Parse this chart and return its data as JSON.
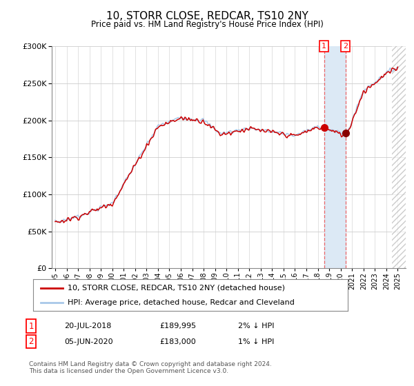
{
  "title": "10, STORR CLOSE, REDCAR, TS10 2NY",
  "subtitle": "Price paid vs. HM Land Registry's House Price Index (HPI)",
  "ylim": [
    0,
    300000
  ],
  "yticks": [
    0,
    50000,
    100000,
    150000,
    200000,
    250000,
    300000
  ],
  "hpi_color": "#a8c8e8",
  "price_color": "#cc0000",
  "marker1_x": 2018.542,
  "marker2_x": 2020.417,
  "marker1_price": 189995,
  "marker2_price": 183000,
  "legend_line1": "10, STORR CLOSE, REDCAR, TS10 2NY (detached house)",
  "legend_line2": "HPI: Average price, detached house, Redcar and Cleveland",
  "table_row1_date": "20-JUL-2018",
  "table_row1_price": "£189,995",
  "table_row1_hpi": "2% ↓ HPI",
  "table_row2_date": "05-JUN-2020",
  "table_row2_price": "£183,000",
  "table_row2_hpi": "1% ↓ HPI",
  "footer": "Contains HM Land Registry data © Crown copyright and database right 2024.\nThis data is licensed under the Open Government Licence v3.0.",
  "background_color": "#ffffff",
  "grid_color": "#cccccc",
  "shade_color": "#dce9f5",
  "hatch_start": 2024.5,
  "xlim_left": 1994.7,
  "xlim_right": 2025.7
}
